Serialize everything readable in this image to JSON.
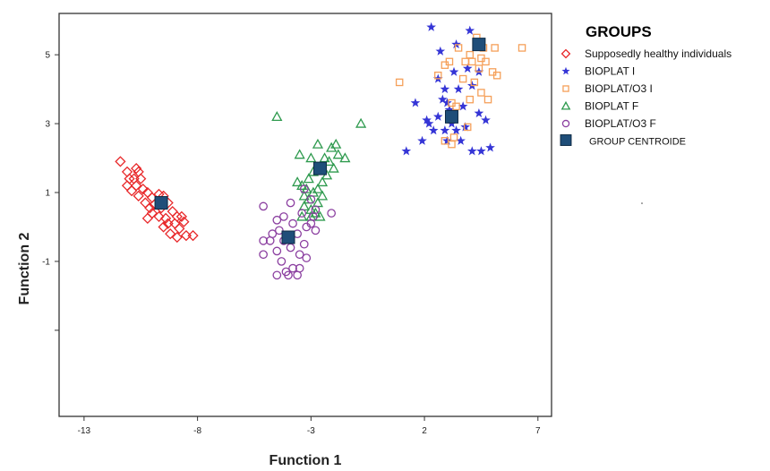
{
  "chart_data": {
    "type": "scatter",
    "xlabel": "Function 1",
    "ylabel": "Function 2",
    "xlim": [
      -14.1,
      7.6
    ],
    "ylim": [
      -5.5,
      6.2
    ],
    "xticks": [
      -13,
      -8,
      -3,
      2,
      7
    ],
    "xtick_labels": [
      "-13",
      "-8",
      "-3",
      "2",
      "7"
    ],
    "yticks": [
      -3,
      -1,
      1,
      3,
      5
    ],
    "ytick_labels": [
      "",
      "-1",
      "1",
      "3",
      "5"
    ],
    "grid": false,
    "legend": {
      "title": "GROUPS",
      "placement": "outside-right"
    },
    "centroid_label": "GROUP CENTROIDE",
    "centroid_color": "#1f4e79",
    "series": [
      {
        "name": "Supposedly healthy individuals",
        "marker": "diamond",
        "color": "#e8282a",
        "points": [
          [
            -11.4,
            1.9
          ],
          [
            -11.1,
            1.6
          ],
          [
            -10.7,
            1.7
          ],
          [
            -10.6,
            1.6
          ],
          [
            -10.8,
            1.4
          ],
          [
            -11.0,
            1.4
          ],
          [
            -11.1,
            1.2
          ],
          [
            -10.7,
            1.2
          ],
          [
            -10.5,
            1.4
          ],
          [
            -10.9,
            1.05
          ],
          [
            -10.4,
            1.1
          ],
          [
            -10.6,
            0.9
          ],
          [
            -10.2,
            1.0
          ],
          [
            -10.0,
            0.85
          ],
          [
            -9.7,
            0.95
          ],
          [
            -10.3,
            0.7
          ],
          [
            -10.1,
            0.55
          ],
          [
            -9.9,
            0.65
          ],
          [
            -9.5,
            0.9
          ],
          [
            -9.3,
            0.7
          ],
          [
            -10.0,
            0.4
          ],
          [
            -9.7,
            0.3
          ],
          [
            -9.4,
            0.25
          ],
          [
            -9.1,
            0.45
          ],
          [
            -8.9,
            0.3
          ],
          [
            -9.5,
            0.0
          ],
          [
            -9.3,
            0.1
          ],
          [
            -9.0,
            0.1
          ],
          [
            -8.8,
            -0.05
          ],
          [
            -8.6,
            0.15
          ],
          [
            -9.2,
            -0.2
          ],
          [
            -8.9,
            -0.3
          ],
          [
            -8.5,
            -0.25
          ],
          [
            -8.2,
            -0.25
          ],
          [
            -9.6,
            0.55
          ],
          [
            -10.2,
            0.25
          ],
          [
            -8.7,
            0.3
          ]
        ]
      },
      {
        "name": "BIOPLAT I",
        "marker": "star",
        "color": "#3535d6",
        "points": [
          [
            2.3,
            5.8
          ],
          [
            4.0,
            5.7
          ],
          [
            3.4,
            5.3
          ],
          [
            2.7,
            5.1
          ],
          [
            3.3,
            4.5
          ],
          [
            3.9,
            4.6
          ],
          [
            4.4,
            4.5
          ],
          [
            3.5,
            4.0
          ],
          [
            4.1,
            4.1
          ],
          [
            2.6,
            4.3
          ],
          [
            2.9,
            4.0
          ],
          [
            3.0,
            3.6
          ],
          [
            3.7,
            3.5
          ],
          [
            4.4,
            3.3
          ],
          [
            1.6,
            3.6
          ],
          [
            2.1,
            3.1
          ],
          [
            2.6,
            3.2
          ],
          [
            3.2,
            3.0
          ],
          [
            3.8,
            2.9
          ],
          [
            4.7,
            3.1
          ],
          [
            2.9,
            2.8
          ],
          [
            3.4,
            2.8
          ],
          [
            1.9,
            2.5
          ],
          [
            2.4,
            2.8
          ],
          [
            3.0,
            2.5
          ],
          [
            3.6,
            2.5
          ],
          [
            4.1,
            2.2
          ],
          [
            4.5,
            2.2
          ],
          [
            4.9,
            2.3
          ],
          [
            1.2,
            2.2
          ],
          [
            2.2,
            3.0
          ],
          [
            3.1,
            3.4
          ],
          [
            2.8,
            3.7
          ]
        ]
      },
      {
        "name": "BIOPLAT/O3 I",
        "marker": "square",
        "color": "#f5a05a",
        "points": [
          [
            4.3,
            5.5
          ],
          [
            5.1,
            5.2
          ],
          [
            6.3,
            5.2
          ],
          [
            3.5,
            5.2
          ],
          [
            4.0,
            5.0
          ],
          [
            4.5,
            4.9
          ],
          [
            3.8,
            4.8
          ],
          [
            4.1,
            4.8
          ],
          [
            4.7,
            4.8
          ],
          [
            3.1,
            4.8
          ],
          [
            4.4,
            4.6
          ],
          [
            2.9,
            4.7
          ],
          [
            5.0,
            4.5
          ],
          [
            2.6,
            4.4
          ],
          [
            0.9,
            4.2
          ],
          [
            3.7,
            4.3
          ],
          [
            4.2,
            4.2
          ],
          [
            4.5,
            3.9
          ],
          [
            3.2,
            3.6
          ],
          [
            4.0,
            3.7
          ],
          [
            3.4,
            3.5
          ],
          [
            3.9,
            2.9
          ],
          [
            3.3,
            2.6
          ],
          [
            2.9,
            2.5
          ],
          [
            3.2,
            2.4
          ],
          [
            4.8,
            3.7
          ],
          [
            5.2,
            4.4
          ],
          [
            4.6,
            5.2
          ]
        ]
      },
      {
        "name": "BIOPLAT F",
        "marker": "triangle",
        "color": "#2e9a4e",
        "points": [
          [
            -4.5,
            3.2
          ],
          [
            -0.8,
            3.0
          ],
          [
            -2.7,
            2.4
          ],
          [
            -1.9,
            2.4
          ],
          [
            -3.5,
            2.1
          ],
          [
            -2.4,
            2.0
          ],
          [
            -1.8,
            2.1
          ],
          [
            -1.5,
            2.0
          ],
          [
            -3.0,
            2.0
          ],
          [
            -2.2,
            1.9
          ],
          [
            -2.0,
            1.7
          ],
          [
            -2.9,
            1.6
          ],
          [
            -3.1,
            1.4
          ],
          [
            -2.5,
            1.3
          ],
          [
            -3.6,
            1.3
          ],
          [
            -3.4,
            1.2
          ],
          [
            -2.7,
            1.1
          ],
          [
            -2.9,
            1.0
          ],
          [
            -3.1,
            0.8
          ],
          [
            -2.7,
            0.7
          ],
          [
            -3.3,
            0.6
          ],
          [
            -3.0,
            0.5
          ],
          [
            -2.8,
            0.4
          ],
          [
            -3.4,
            0.3
          ],
          [
            -2.6,
            0.3
          ],
          [
            -2.3,
            1.5
          ],
          [
            -2.1,
            2.3
          ],
          [
            -3.2,
            1.1
          ],
          [
            -2.5,
            0.9
          ],
          [
            -3.0,
            0.3
          ],
          [
            -3.3,
            0.9
          ]
        ]
      },
      {
        "name": "BIOPLAT/O3 F",
        "marker": "circle",
        "color": "#8b3fa0",
        "points": [
          [
            -3.3,
            1.1
          ],
          [
            -3.0,
            0.8
          ],
          [
            -3.9,
            0.7
          ],
          [
            -2.8,
            0.5
          ],
          [
            -5.1,
            0.6
          ],
          [
            -3.4,
            0.4
          ],
          [
            -2.1,
            0.4
          ],
          [
            -4.2,
            0.3
          ],
          [
            -3.8,
            0.1
          ],
          [
            -4.5,
            0.2
          ],
          [
            -3.2,
            0.0
          ],
          [
            -2.9,
            0.3
          ],
          [
            -5.1,
            -0.4
          ],
          [
            -4.7,
            -0.2
          ],
          [
            -3.6,
            -0.2
          ],
          [
            -4.8,
            -0.4
          ],
          [
            -4.2,
            -0.4
          ],
          [
            -3.3,
            -0.5
          ],
          [
            -5.1,
            -0.8
          ],
          [
            -4.5,
            -0.7
          ],
          [
            -3.9,
            -0.6
          ],
          [
            -3.5,
            -0.8
          ],
          [
            -3.2,
            -0.9
          ],
          [
            -4.5,
            -1.4
          ],
          [
            -4.1,
            -1.3
          ],
          [
            -3.8,
            -1.2
          ],
          [
            -3.6,
            -1.4
          ],
          [
            -4.3,
            -1.0
          ],
          [
            -3.5,
            -1.2
          ],
          [
            -4.0,
            -1.4
          ],
          [
            -3.0,
            0.1
          ],
          [
            -4.4,
            -0.1
          ],
          [
            -2.8,
            -0.1
          ]
        ]
      }
    ],
    "centroids": [
      {
        "group": "Supposedly healthy individuals",
        "x": -9.6,
        "y": 0.7
      },
      {
        "group": "BIOPLAT I",
        "x": 3.2,
        "y": 3.2
      },
      {
        "group": "BIOPLAT/O3 I",
        "x": 4.4,
        "y": 5.3
      },
      {
        "group": "BIOPLAT F",
        "x": -2.6,
        "y": 1.7
      },
      {
        "group": "BIOPLAT/O3 F",
        "x": -4.0,
        "y": -0.3
      }
    ]
  }
}
